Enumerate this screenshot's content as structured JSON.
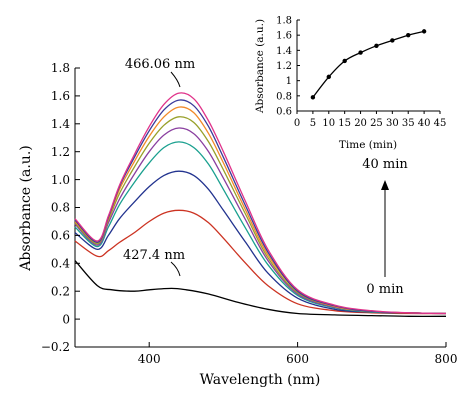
{
  "chart_data": [
    {
      "type": "line",
      "xlabel": "Wavelength (nm)",
      "ylabel": "Absorbance (a.u.)",
      "xlim": [
        300,
        800
      ],
      "ylim": [
        -0.2,
        1.8
      ],
      "x_ticks": [
        400,
        600,
        800
      ],
      "y_ticks": [
        -0.2,
        0,
        0.2,
        0.4,
        0.6,
        0.8,
        1.0,
        1.2,
        1.4,
        1.6,
        1.8
      ],
      "y_tick_labels": [
        "−0.2",
        "0",
        "0.2",
        "0.4",
        "0.6",
        "0.8",
        "1.0",
        "1.2",
        "1.4",
        "1.6",
        "1.8"
      ],
      "grid": false,
      "legend": "none",
      "series": [
        {
          "color": "#000000",
          "x": [
            300,
            330,
            350,
            380,
            400,
            430,
            450,
            480,
            520,
            560,
            600,
            650,
            700,
            750,
            800
          ],
          "y": [
            0.42,
            0.24,
            0.21,
            0.2,
            0.21,
            0.22,
            0.21,
            0.18,
            0.12,
            0.07,
            0.04,
            0.03,
            0.025,
            0.02,
            0.02
          ]
        },
        {
          "color": "#cc3322",
          "x": [
            300,
            330,
            345,
            360,
            380,
            400,
            420,
            440,
            460,
            480,
            500,
            530,
            560,
            600,
            650,
            700,
            750,
            800
          ],
          "y": [
            0.56,
            0.45,
            0.49,
            0.55,
            0.62,
            0.7,
            0.76,
            0.78,
            0.76,
            0.69,
            0.58,
            0.4,
            0.24,
            0.11,
            0.06,
            0.045,
            0.04,
            0.04
          ]
        },
        {
          "color": "#22338f",
          "x": [
            300,
            330,
            345,
            360,
            380,
            400,
            420,
            440,
            460,
            480,
            500,
            530,
            560,
            600,
            650,
            700,
            750,
            800
          ],
          "y": [
            0.62,
            0.5,
            0.6,
            0.72,
            0.84,
            0.95,
            1.03,
            1.06,
            1.03,
            0.93,
            0.78,
            0.55,
            0.33,
            0.15,
            0.07,
            0.05,
            0.045,
            0.04
          ]
        },
        {
          "color": "#1aa08f",
          "x": [
            300,
            330,
            345,
            360,
            380,
            400,
            420,
            440,
            460,
            480,
            500,
            530,
            560,
            600,
            650,
            700,
            750,
            800
          ],
          "y": [
            0.66,
            0.52,
            0.66,
            0.82,
            0.98,
            1.12,
            1.23,
            1.27,
            1.23,
            1.11,
            0.93,
            0.65,
            0.39,
            0.17,
            0.08,
            0.05,
            0.045,
            0.04
          ]
        },
        {
          "color": "#8a3fa0",
          "x": [
            300,
            330,
            345,
            360,
            380,
            400,
            420,
            440,
            460,
            480,
            500,
            530,
            560,
            600,
            650,
            700,
            750,
            800
          ],
          "y": [
            0.68,
            0.53,
            0.69,
            0.86,
            1.04,
            1.2,
            1.32,
            1.37,
            1.33,
            1.2,
            1.01,
            0.71,
            0.42,
            0.18,
            0.085,
            0.055,
            0.045,
            0.04
          ]
        },
        {
          "color": "#98a02a",
          "x": [
            300,
            330,
            345,
            360,
            380,
            400,
            420,
            440,
            460,
            480,
            500,
            530,
            560,
            600,
            650,
            700,
            750,
            800
          ],
          "y": [
            0.69,
            0.54,
            0.71,
            0.9,
            1.09,
            1.26,
            1.39,
            1.45,
            1.41,
            1.27,
            1.07,
            0.75,
            0.44,
            0.19,
            0.09,
            0.055,
            0.045,
            0.04
          ]
        },
        {
          "color": "#f28a2a",
          "x": [
            300,
            330,
            345,
            360,
            380,
            400,
            420,
            440,
            460,
            480,
            500,
            530,
            560,
            600,
            650,
            700,
            750,
            800
          ],
          "y": [
            0.7,
            0.55,
            0.72,
            0.93,
            1.13,
            1.31,
            1.45,
            1.52,
            1.48,
            1.33,
            1.12,
            0.78,
            0.46,
            0.2,
            0.09,
            0.055,
            0.045,
            0.04
          ]
        },
        {
          "color": "#3a3a9a",
          "x": [
            300,
            330,
            345,
            360,
            380,
            400,
            420,
            440,
            460,
            480,
            500,
            530,
            560,
            600,
            650,
            700,
            750,
            800
          ],
          "y": [
            0.71,
            0.55,
            0.73,
            0.95,
            1.16,
            1.35,
            1.5,
            1.57,
            1.53,
            1.38,
            1.16,
            0.81,
            0.48,
            0.2,
            0.095,
            0.055,
            0.045,
            0.04
          ]
        },
        {
          "color": "#e0338a",
          "x": [
            300,
            330,
            345,
            360,
            380,
            400,
            420,
            440,
            460,
            480,
            500,
            530,
            560,
            600,
            650,
            700,
            750,
            800
          ],
          "y": [
            0.72,
            0.56,
            0.74,
            0.96,
            1.18,
            1.38,
            1.54,
            1.62,
            1.58,
            1.42,
            1.2,
            0.84,
            0.5,
            0.21,
            0.1,
            0.06,
            0.045,
            0.04
          ]
        }
      ],
      "annotations": [
        {
          "text": "466.06 nm",
          "x": 438,
          "y": 1.69
        },
        {
          "text": "427.4 nm",
          "x": 413,
          "y": 0.32
        },
        {
          "text": "40 min",
          "x": 710,
          "y": 1.0
        },
        {
          "text": "0 min",
          "x": 710,
          "y": 0.19
        }
      ]
    },
    {
      "type": "line",
      "xlabel": "Time (min)",
      "ylabel": "Absorbance (a.u.)",
      "xlim": [
        0,
        45
      ],
      "ylim": [
        0.6,
        1.8
      ],
      "x_ticks": [
        0,
        5,
        10,
        15,
        20,
        25,
        30,
        35,
        40,
        45
      ],
      "y_ticks": [
        0.6,
        0.8,
        1.0,
        1.2,
        1.4,
        1.6,
        1.8
      ],
      "y_tick_labels": [
        "0.6",
        "0.8",
        "1",
        "1.2",
        "1.4",
        "1.6",
        "1.8"
      ],
      "series": [
        {
          "color": "#000000",
          "x": [
            5,
            10,
            15,
            20,
            25,
            30,
            35,
            40
          ],
          "y": [
            0.78,
            1.05,
            1.26,
            1.37,
            1.46,
            1.53,
            1.6,
            1.65
          ]
        }
      ]
    }
  ]
}
